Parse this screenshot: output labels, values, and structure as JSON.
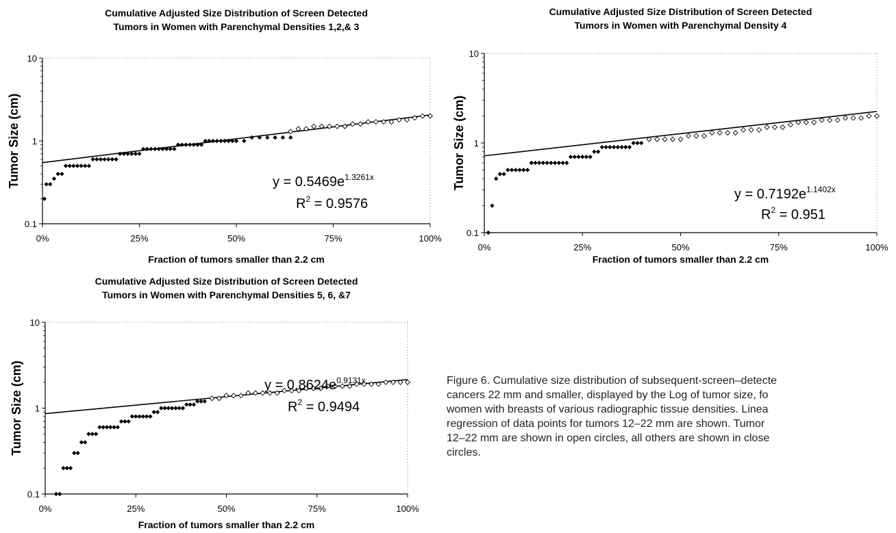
{
  "caption": "Figure 6.  Cumulative size distribution of subsequent-screen–detecte\ncancers 22 mm and smaller, displayed by the Log of tumor size, fo\nwomen with breasts of various radiographic tissue densities. Linea\nregression of data points for tumors 12–22 mm are shown. Tumor\n12–22 mm are shown in open circles, all others are shown in close\ncircles.",
  "chart_data": [
    {
      "type": "scatter",
      "title_lines": [
        "Cumulative Adjusted Size Distribution of Screen Detected",
        "Tumors in Women with Parenchymal Densities 1,2,& 3"
      ],
      "xlabel": "Fraction of tumors smaller than 2.2 cm",
      "ylabel": "Tumor Size (cm)",
      "x_ticks": [
        "0%",
        "25%",
        "50%",
        "75%",
        "100%"
      ],
      "y_ticks": [
        "0.1",
        "1",
        "10"
      ],
      "xlim": [
        0,
        1
      ],
      "ylim": [
        0.1,
        10
      ],
      "yscale": "log",
      "grid": false,
      "series": [
        {
          "marker": "closed",
          "x": [
            0.005,
            0.01,
            0.02,
            0.03,
            0.04,
            0.05,
            0.06,
            0.07,
            0.08,
            0.09,
            0.1,
            0.11,
            0.12,
            0.13,
            0.14,
            0.15,
            0.16,
            0.17,
            0.18,
            0.19,
            0.2,
            0.21,
            0.22,
            0.23,
            0.24,
            0.25,
            0.26,
            0.27,
            0.28,
            0.29,
            0.3,
            0.31,
            0.32,
            0.33,
            0.34,
            0.35,
            0.36,
            0.37,
            0.38,
            0.39,
            0.4,
            0.41,
            0.42,
            0.43,
            0.44,
            0.45,
            0.46,
            0.47,
            0.48,
            0.49,
            0.5,
            0.52,
            0.54,
            0.56,
            0.58,
            0.6,
            0.62,
            0.64
          ],
          "y": [
            0.2,
            0.3,
            0.3,
            0.35,
            0.4,
            0.4,
            0.5,
            0.5,
            0.5,
            0.5,
            0.5,
            0.5,
            0.5,
            0.6,
            0.6,
            0.6,
            0.6,
            0.6,
            0.6,
            0.6,
            0.7,
            0.7,
            0.7,
            0.7,
            0.7,
            0.7,
            0.8,
            0.8,
            0.8,
            0.8,
            0.8,
            0.8,
            0.8,
            0.8,
            0.8,
            0.9,
            0.9,
            0.9,
            0.9,
            0.9,
            0.9,
            0.9,
            1.0,
            1.0,
            1.0,
            1.0,
            1.0,
            1.0,
            1.0,
            1.0,
            1.0,
            1.0,
            1.1,
            1.1,
            1.1,
            1.1,
            1.1,
            1.1
          ]
        },
        {
          "marker": "open",
          "x": [
            0.64,
            0.66,
            0.68,
            0.7,
            0.72,
            0.74,
            0.76,
            0.78,
            0.8,
            0.82,
            0.84,
            0.86,
            0.88,
            0.9,
            0.92,
            0.94,
            0.96,
            0.98,
            1.0
          ],
          "y": [
            1.3,
            1.4,
            1.4,
            1.5,
            1.5,
            1.5,
            1.5,
            1.5,
            1.6,
            1.6,
            1.7,
            1.7,
            1.7,
            1.7,
            1.8,
            1.8,
            1.9,
            2.0,
            2.0
          ]
        }
      ],
      "trendline": {
        "a": 0.5469,
        "b": 1.3261
      },
      "equation": {
        "lhs": "y = 0.5469e",
        "exponent": "1.3261x",
        "r2_label": "R",
        "r2_sup": "2",
        "r2_value": " = 0.9576"
      }
    },
    {
      "type": "scatter",
      "title_lines": [
        "Cumulative Adjusted Size Distribution of Screen Detected",
        "Tumors in Women with Parenchymal Density 4"
      ],
      "xlabel": "Fraction of tumors smaller than 2.2 cm",
      "ylabel": "Tumor Size (cm)",
      "x_ticks": [
        "0%",
        "25%",
        "50%",
        "75%",
        "100%"
      ],
      "y_ticks": [
        "0.1",
        "1",
        "10"
      ],
      "xlim": [
        0,
        1
      ],
      "ylim": [
        0.1,
        10
      ],
      "yscale": "log",
      "grid": false,
      "series": [
        {
          "marker": "closed",
          "x": [
            0.01,
            0.02,
            0.03,
            0.04,
            0.05,
            0.06,
            0.07,
            0.08,
            0.09,
            0.1,
            0.11,
            0.12,
            0.13,
            0.14,
            0.15,
            0.16,
            0.17,
            0.18,
            0.19,
            0.2,
            0.21,
            0.22,
            0.23,
            0.24,
            0.25,
            0.26,
            0.27,
            0.28,
            0.29,
            0.3,
            0.31,
            0.32,
            0.33,
            0.34,
            0.35,
            0.36,
            0.37,
            0.38,
            0.39,
            0.4
          ],
          "y": [
            0.1,
            0.2,
            0.4,
            0.45,
            0.45,
            0.5,
            0.5,
            0.5,
            0.5,
            0.5,
            0.5,
            0.6,
            0.6,
            0.6,
            0.6,
            0.6,
            0.6,
            0.6,
            0.6,
            0.6,
            0.6,
            0.7,
            0.7,
            0.7,
            0.7,
            0.7,
            0.7,
            0.8,
            0.8,
            0.9,
            0.9,
            0.9,
            0.9,
            0.9,
            0.9,
            0.9,
            0.9,
            1.0,
            1.0,
            1.0
          ]
        },
        {
          "marker": "open",
          "x": [
            0.42,
            0.44,
            0.46,
            0.48,
            0.5,
            0.52,
            0.54,
            0.56,
            0.58,
            0.6,
            0.62,
            0.64,
            0.66,
            0.68,
            0.7,
            0.72,
            0.74,
            0.76,
            0.78,
            0.8,
            0.82,
            0.84,
            0.86,
            0.88,
            0.9,
            0.92,
            0.94,
            0.96,
            0.98,
            1.0
          ],
          "y": [
            1.1,
            1.1,
            1.1,
            1.1,
            1.1,
            1.2,
            1.2,
            1.2,
            1.3,
            1.3,
            1.3,
            1.3,
            1.4,
            1.4,
            1.4,
            1.5,
            1.5,
            1.5,
            1.6,
            1.7,
            1.7,
            1.7,
            1.8,
            1.8,
            1.8,
            1.9,
            1.9,
            1.9,
            2.0,
            2.0
          ]
        }
      ],
      "trendline": {
        "a": 0.7192,
        "b": 1.1402
      },
      "equation": {
        "lhs": "y = 0.7192e",
        "exponent": "1.1402x",
        "r2_label": "R",
        "r2_sup": "2",
        "r2_value": " = 0.951"
      }
    },
    {
      "type": "scatter",
      "title_lines": [
        "Cumulative Adjusted Size Distribution of Screen Detected",
        "Tumors in Women with Parenchymal Densities 5, 6, &7"
      ],
      "xlabel": "Fraction of tumors smaller than 2.2 cm",
      "ylabel": "Tumor Size (cm)",
      "x_ticks": [
        "0%",
        "25%",
        "50%",
        "75%",
        "100%"
      ],
      "y_ticks": [
        "0.1",
        "1",
        "10"
      ],
      "xlim": [
        0,
        1
      ],
      "ylim": [
        0.1,
        10
      ],
      "yscale": "log",
      "grid": false,
      "series": [
        {
          "marker": "closed",
          "x": [
            0.03,
            0.04,
            0.05,
            0.06,
            0.07,
            0.08,
            0.09,
            0.1,
            0.11,
            0.12,
            0.13,
            0.14,
            0.15,
            0.16,
            0.17,
            0.18,
            0.19,
            0.2,
            0.21,
            0.22,
            0.23,
            0.24,
            0.25,
            0.26,
            0.27,
            0.28,
            0.29,
            0.3,
            0.31,
            0.32,
            0.33,
            0.34,
            0.35,
            0.36,
            0.37,
            0.38,
            0.39,
            0.4,
            0.41,
            0.42,
            0.43,
            0.44
          ],
          "y": [
            0.1,
            0.1,
            0.2,
            0.2,
            0.2,
            0.3,
            0.3,
            0.4,
            0.4,
            0.5,
            0.5,
            0.5,
            0.6,
            0.6,
            0.6,
            0.6,
            0.6,
            0.6,
            0.7,
            0.7,
            0.7,
            0.8,
            0.8,
            0.8,
            0.8,
            0.8,
            0.8,
            0.9,
            0.9,
            1.0,
            1.0,
            1.0,
            1.0,
            1.0,
            1.0,
            1.0,
            1.1,
            1.1,
            1.1,
            1.2,
            1.2,
            1.2
          ]
        },
        {
          "marker": "open",
          "x": [
            0.46,
            0.48,
            0.5,
            0.52,
            0.54,
            0.56,
            0.58,
            0.6,
            0.62,
            0.64,
            0.66,
            0.68,
            0.7,
            0.72,
            0.74,
            0.76,
            0.78,
            0.8,
            0.82,
            0.84,
            0.86,
            0.88,
            0.9,
            0.92,
            0.94,
            0.96,
            0.98,
            1.0
          ],
          "y": [
            1.3,
            1.3,
            1.4,
            1.4,
            1.4,
            1.5,
            1.5,
            1.5,
            1.5,
            1.5,
            1.6,
            1.6,
            1.6,
            1.7,
            1.7,
            1.7,
            1.8,
            1.8,
            1.8,
            1.8,
            1.9,
            1.9,
            1.9,
            1.9,
            2.0,
            2.0,
            2.0,
            2.0
          ]
        }
      ],
      "trendline": {
        "a": 0.8624,
        "b": 0.9131
      },
      "equation": {
        "lhs": "y = 0.8624e",
        "exponent": "0.9131x",
        "r2_label": "R",
        "r2_sup": "2",
        "r2_value": " = 0.9494"
      }
    }
  ]
}
